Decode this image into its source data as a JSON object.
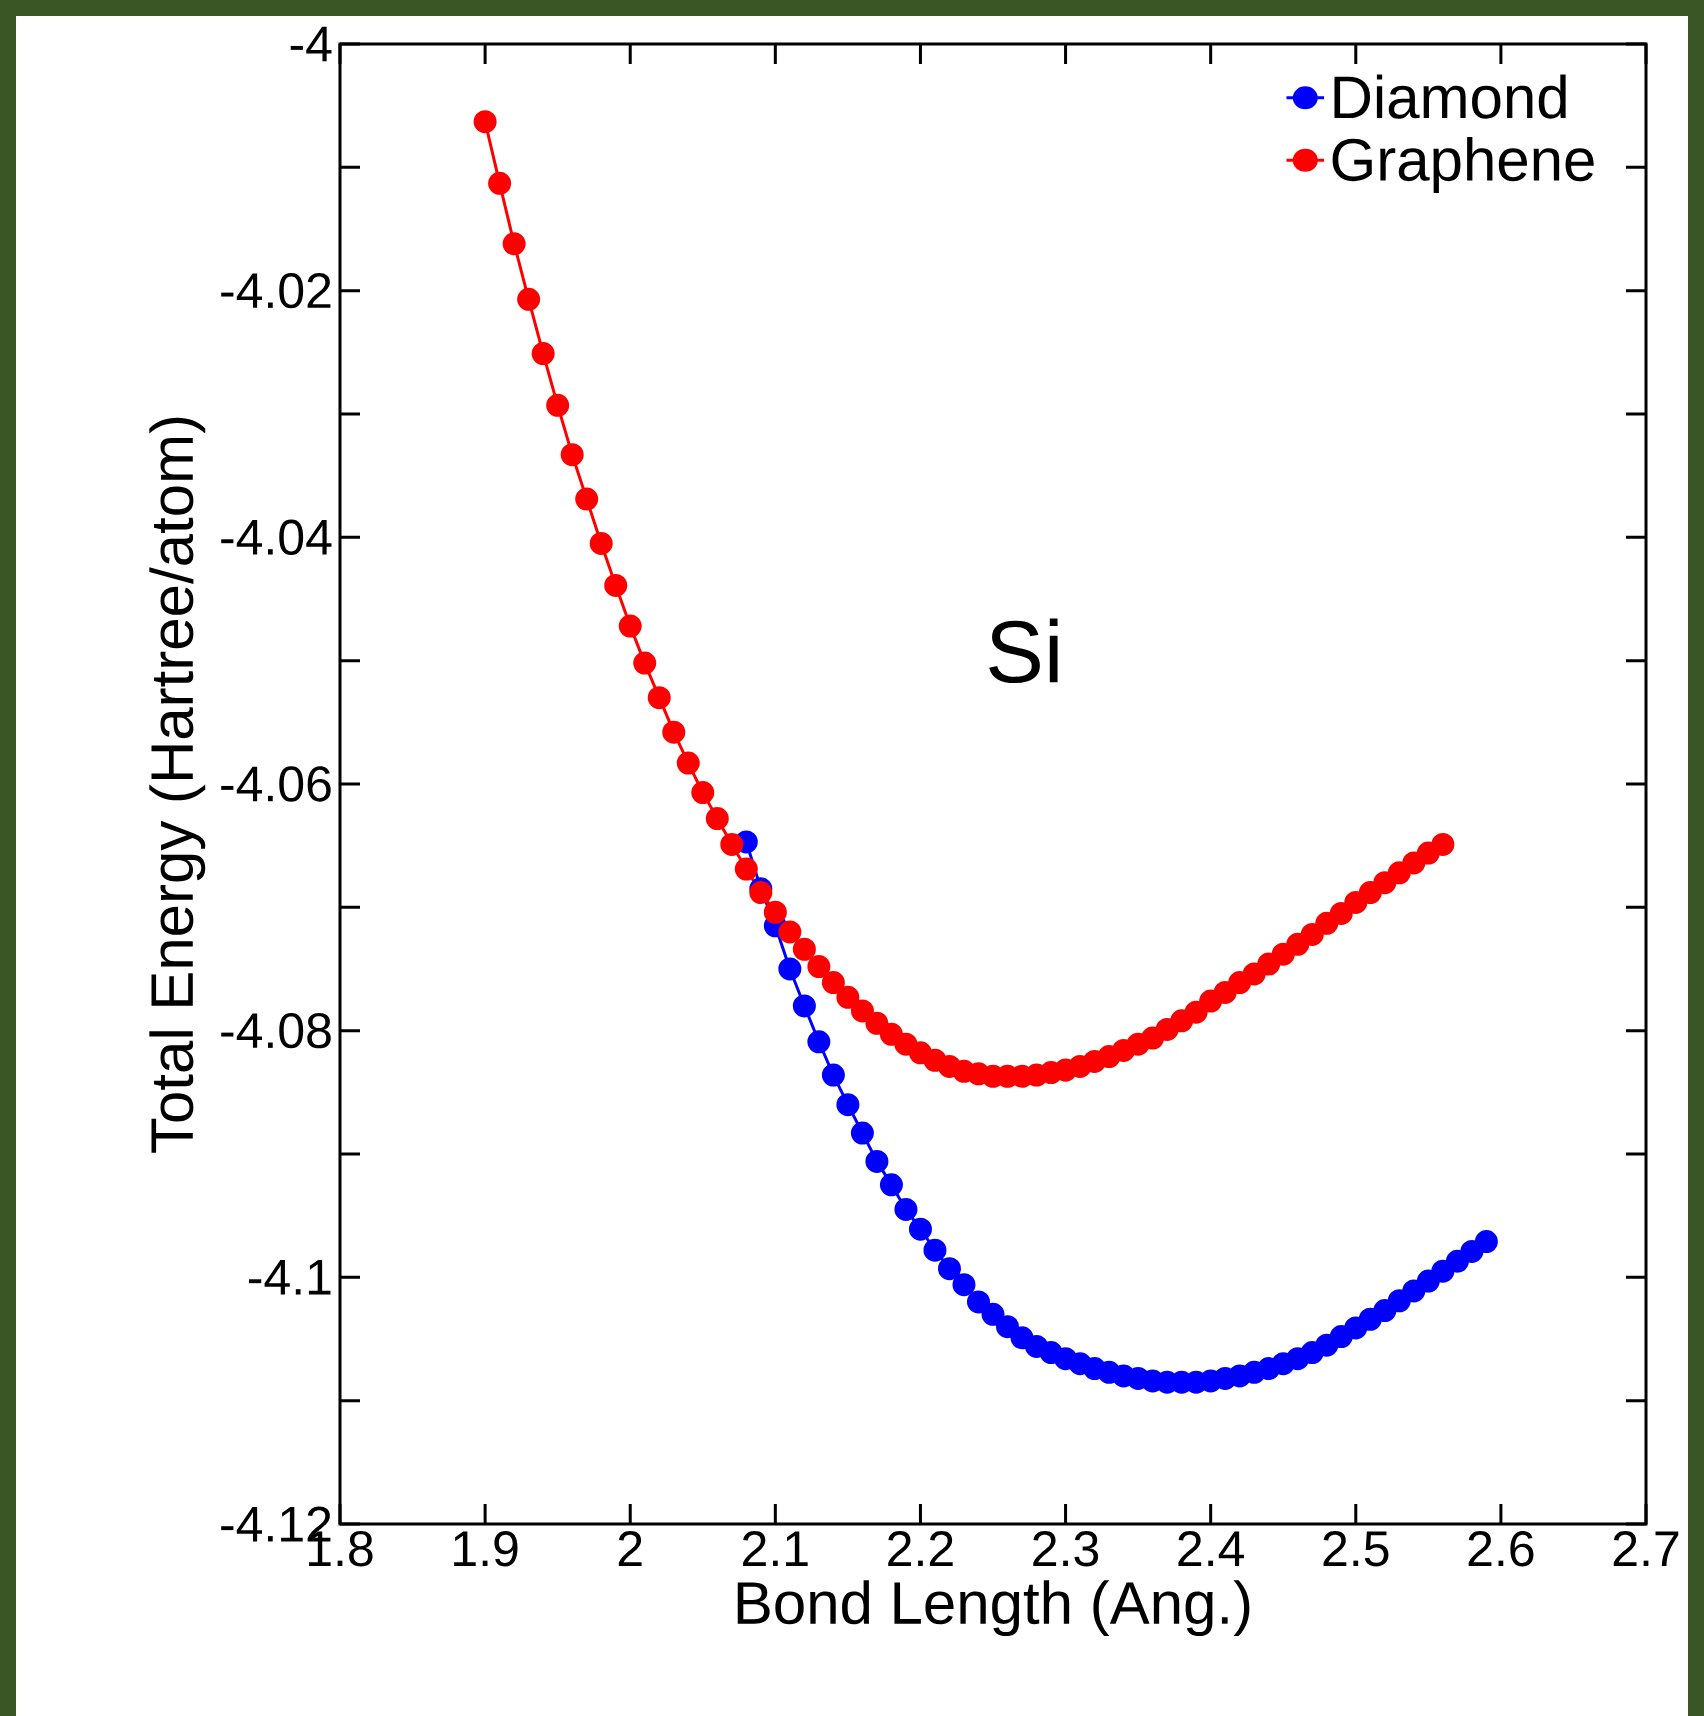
{
  "chart_data": {
    "type": "line",
    "xlabel": "Bond Length (Ang.)",
    "ylabel": "Total Energy (Hartree/atom)",
    "annotations": [
      "Si"
    ],
    "xlim": [
      1.8,
      2.7
    ],
    "ylim": [
      -4.12,
      -4
    ],
    "xticks": [
      1.8,
      1.9,
      2,
      2.1,
      2.2,
      2.3,
      2.4,
      2.5,
      2.6,
      2.7
    ],
    "yticks": [
      -4.12,
      {
        "value": -4.11,
        "label": null
      },
      -4.1,
      {
        "value": -4.09,
        "label": null
      },
      -4.08,
      {
        "value": -4.07,
        "label": null
      },
      -4.06,
      {
        "value": -4.05,
        "label": null
      },
      -4.04,
      {
        "value": -4.03,
        "label": null
      },
      -4.02,
      {
        "value": -4.01,
        "label": null
      },
      -4
    ],
    "grid": false,
    "legend": "top right",
    "marker": "circle",
    "line_style": "solid",
    "series": [
      {
        "name": "Diamond",
        "color": "#0000ff",
        "x": [
          2.08,
          2.09,
          2.1,
          2.11,
          2.12,
          2.13,
          2.14,
          2.15,
          2.16,
          2.17,
          2.18,
          2.19,
          2.2,
          2.21,
          2.22,
          2.23,
          2.24,
          2.25,
          2.26,
          2.27,
          2.28,
          2.29,
          2.3,
          2.31,
          2.32,
          2.33,
          2.34,
          2.35,
          2.36,
          2.37,
          2.38,
          2.39,
          2.4,
          2.41,
          2.42,
          2.43,
          2.44,
          2.45,
          2.46,
          2.47,
          2.48,
          2.49,
          2.5,
          2.51,
          2.52,
          2.53,
          2.54,
          2.55,
          2.56,
          2.57,
          2.58,
          2.59
        ],
        "values": [
          -4.0647,
          -4.0685,
          -4.0715,
          -4.075,
          -4.078,
          -4.0809,
          -4.0836,
          -4.086,
          -4.0883,
          -4.0906,
          -4.0925,
          -4.0945,
          -4.0961,
          -4.0978,
          -4.0993,
          -4.1006,
          -4.102,
          -4.103,
          -4.104,
          -4.1049,
          -4.1056,
          -4.1061,
          -4.1066,
          -4.107,
          -4.1074,
          -4.1077,
          -4.108,
          -4.1082,
          -4.1084,
          -4.1085,
          -4.1085,
          -4.1085,
          -4.1084,
          -4.1082,
          -4.108,
          -4.1077,
          -4.1074,
          -4.107,
          -4.1066,
          -4.1061,
          -4.1055,
          -4.1048,
          -4.1041,
          -4.1034,
          -4.1027,
          -4.1019,
          -4.1011,
          -4.1003,
          -4.0995,
          -4.0987,
          -4.0979,
          -4.0971
        ]
      },
      {
        "name": "Graphene",
        "color": "#ff0000",
        "x": [
          1.9,
          1.91,
          1.92,
          1.93,
          1.94,
          1.95,
          1.96,
          1.97,
          1.98,
          1.99,
          2.0,
          2.01,
          2.02,
          2.03,
          2.04,
          2.05,
          2.06,
          2.07,
          2.08,
          2.09,
          2.1,
          2.11,
          2.12,
          2.13,
          2.14,
          2.15,
          2.16,
          2.17,
          2.18,
          2.19,
          2.2,
          2.21,
          2.22,
          2.23,
          2.24,
          2.25,
          2.26,
          2.27,
          2.28,
          2.29,
          2.3,
          2.31,
          2.32,
          2.33,
          2.34,
          2.35,
          2.36,
          2.37,
          2.38,
          2.39,
          2.4,
          2.41,
          2.42,
          2.43,
          2.44,
          2.45,
          2.46,
          2.47,
          2.48,
          2.49,
          2.5,
          2.51,
          2.52,
          2.53,
          2.54,
          2.55,
          2.56
        ],
        "values": [
          -4.0063,
          -4.0113,
          -4.0162,
          -4.0207,
          -4.0251,
          -4.0293,
          -4.0333,
          -4.0369,
          -4.0405,
          -4.0439,
          -4.0472,
          -4.0502,
          -4.053,
          -4.0558,
          -4.0583,
          -4.0607,
          -4.0628,
          -4.0649,
          -4.0669,
          -4.0688,
          -4.0704,
          -4.072,
          -4.0734,
          -4.0748,
          -4.0761,
          -4.0773,
          -4.0784,
          -4.0794,
          -4.0803,
          -4.0811,
          -4.0818,
          -4.0824,
          -4.0829,
          -4.0833,
          -4.0835,
          -4.0837,
          -4.0837,
          -4.0837,
          -4.0836,
          -4.0834,
          -4.0832,
          -4.0829,
          -4.0825,
          -4.0821,
          -4.0816,
          -4.0811,
          -4.0806,
          -4.0799,
          -4.0792,
          -4.0785,
          -4.0776,
          -4.0769,
          -4.0761,
          -4.0754,
          -4.0746,
          -4.0738,
          -4.073,
          -4.0722,
          -4.0713,
          -4.0705,
          -4.0696,
          -4.0688,
          -4.068,
          -4.0672,
          -4.0664,
          -4.0656,
          -4.0649
        ]
      }
    ]
  }
}
